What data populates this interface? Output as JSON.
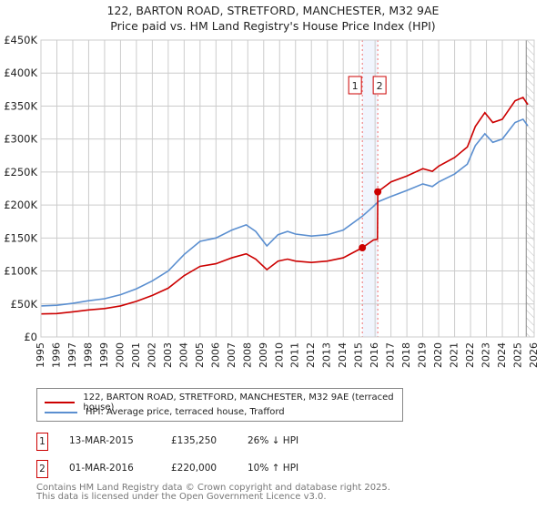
{
  "chart_data": {
    "type": "line",
    "title": "122, BARTON ROAD, STRETFORD, MANCHESTER, M32 9AE",
    "subtitle": "Price paid vs. HM Land Registry's House Price Index (HPI)",
    "xlim": [
      1995,
      2026
    ],
    "ylim": [
      0,
      450000
    ],
    "x_ticks": [
      "1995",
      "1996",
      "1997",
      "1998",
      "1999",
      "2000",
      "2001",
      "2002",
      "2003",
      "2004",
      "2005",
      "2006",
      "2007",
      "2008",
      "2009",
      "2010",
      "2011",
      "2012",
      "2013",
      "2014",
      "2015",
      "2016",
      "2017",
      "2018",
      "2019",
      "2020",
      "2021",
      "2022",
      "2023",
      "2024",
      "2025",
      "2026"
    ],
    "y_ticks": [
      {
        "v": 0,
        "label": "£0"
      },
      {
        "v": 50000,
        "label": "£50K"
      },
      {
        "v": 100000,
        "label": "£100K"
      },
      {
        "v": 150000,
        "label": "£150K"
      },
      {
        "v": 200000,
        "label": "£200K"
      },
      {
        "v": 250000,
        "label": "£250K"
      },
      {
        "v": 300000,
        "label": "£300K"
      },
      {
        "v": 350000,
        "label": "£350K"
      },
      {
        "v": 400000,
        "label": "£400K"
      },
      {
        "v": 450000,
        "label": "£450K"
      }
    ],
    "grid": true,
    "forecast_hatch_from": 2025.5,
    "series": [
      {
        "name": "122, BARTON ROAD, STRETFORD, MANCHESTER, M32 9AE (terraced house)",
        "color": "#cc0000",
        "x": [
          1995,
          1996,
          1997,
          1998,
          1999,
          2000,
          2001,
          2002,
          2003,
          2004,
          2005,
          2006,
          2007,
          2007.9,
          2008.5,
          2009.2,
          2009.9,
          2010.5,
          2011,
          2012,
          2013,
          2014,
          2015.2,
          2015.9,
          2016.15,
          2016.17,
          2017,
          2018,
          2019,
          2019.6,
          2020,
          2021,
          2021.8,
          2022.3,
          2022.9,
          2023.4,
          2024,
          2024.8,
          2025.3,
          2025.6
        ],
        "y": [
          35000,
          35500,
          38000,
          41000,
          43000,
          47000,
          54000,
          63000,
          74000,
          93000,
          107000,
          111000,
          120000,
          126000,
          118000,
          102000,
          115000,
          118000,
          115000,
          113000,
          115000,
          120000,
          135250,
          147000,
          148000,
          220000,
          235000,
          244000,
          255000,
          251000,
          259000,
          272000,
          288000,
          319000,
          340000,
          325000,
          330000,
          358000,
          363000,
          352000
        ]
      },
      {
        "name": "HPI: Average price, terraced house, Trafford",
        "color": "#5b8fd0",
        "x": [
          1995,
          1996,
          1997,
          1998,
          1999,
          2000,
          2001,
          2002,
          2003,
          2004,
          2005,
          2006,
          2007,
          2007.9,
          2008.5,
          2009.2,
          2009.9,
          2010.5,
          2011,
          2012,
          2013,
          2014,
          2015.2,
          2015.9,
          2016.2,
          2017,
          2018,
          2019,
          2019.6,
          2020,
          2021,
          2021.8,
          2022.3,
          2022.9,
          2023.4,
          2024,
          2024.8,
          2025.3,
          2025.6
        ],
        "y": [
          47000,
          48000,
          51000,
          55000,
          58000,
          64000,
          73000,
          85000,
          100000,
          125000,
          145000,
          150000,
          162000,
          170000,
          160000,
          138000,
          155000,
          160000,
          156000,
          153000,
          155000,
          162000,
          183000,
          198000,
          205000,
          213000,
          222000,
          232000,
          228000,
          235000,
          247000,
          262000,
          290000,
          308000,
          295000,
          300000,
          325000,
          330000,
          320000
        ]
      }
    ],
    "transactions": [
      {
        "label": "1",
        "date": "13-MAR-2015",
        "x": 2015.2,
        "price": "£135,250",
        "value": 135250,
        "hpi": "26% ↓ HPI"
      },
      {
        "label": "2",
        "date": "01-MAR-2016",
        "x": 2016.17,
        "price": "£220,000",
        "value": 220000,
        "hpi": "10% ↑ HPI"
      }
    ]
  },
  "footer": [
    "Contains HM Land Registry data © Crown copyright and database right 2025.",
    "This data is licensed under the Open Government Licence v3.0."
  ]
}
